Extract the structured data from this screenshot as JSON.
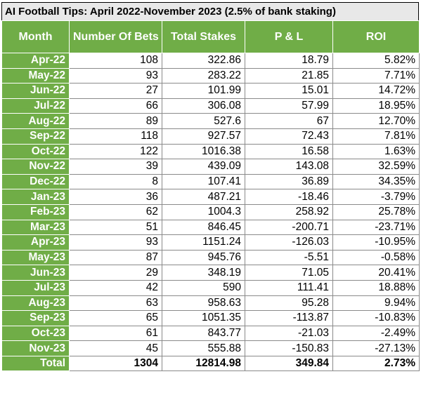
{
  "title": "AI Football Tips: April 2022-November 2023 (2.5% of bank staking)",
  "colors": {
    "header_bg": "#70ad47",
    "header_text": "#ffffff"
  },
  "headers": [
    "Month",
    "Number Of Bets",
    "Total Stakes",
    "P & L",
    "ROI"
  ],
  "rows": [
    [
      "Apr-22",
      "108",
      "322.86",
      "18.79",
      "5.82%"
    ],
    [
      "May-22",
      "93",
      "283.22",
      "21.85",
      "7.71%"
    ],
    [
      "Jun-22",
      "27",
      "101.99",
      "15.01",
      "14.72%"
    ],
    [
      "Jul-22",
      "66",
      "306.08",
      "57.99",
      "18.95%"
    ],
    [
      "Aug-22",
      "89",
      "527.6",
      "67",
      "12.70%"
    ],
    [
      "Sep-22",
      "118",
      "927.57",
      "72.43",
      "7.81%"
    ],
    [
      "Oct-22",
      "122",
      "1016.38",
      "16.58",
      "1.63%"
    ],
    [
      "Nov-22",
      "39",
      "439.09",
      "143.08",
      "32.59%"
    ],
    [
      "Dec-22",
      "8",
      "107.41",
      "36.89",
      "34.35%"
    ],
    [
      "Jan-23",
      "36",
      "487.21",
      "-18.46",
      "-3.79%"
    ],
    [
      "Feb-23",
      "62",
      "1004.3",
      "258.92",
      "25.78%"
    ],
    [
      "Mar-23",
      "51",
      "846.45",
      "-200.71",
      "-23.71%"
    ],
    [
      "Apr-23",
      "93",
      "1151.24",
      "-126.03",
      "-10.95%"
    ],
    [
      "May-23",
      "87",
      "945.76",
      "-5.51",
      "-0.58%"
    ],
    [
      "Jun-23",
      "29",
      "348.19",
      "71.05",
      "20.41%"
    ],
    [
      "Jul-23",
      "42",
      "590",
      "111.41",
      "18.88%"
    ],
    [
      "Aug-23",
      "63",
      "958.63",
      "95.28",
      "9.94%"
    ],
    [
      "Sep-23",
      "65",
      "1051.35",
      "-113.87",
      "-10.83%"
    ],
    [
      "Oct-23",
      "61",
      "843.77",
      "-21.03",
      "-2.49%"
    ],
    [
      "Nov-23",
      "45",
      "555.88",
      "-150.83",
      "-27.13%"
    ]
  ],
  "total": [
    "Total",
    "1304",
    "12814.98",
    "349.84",
    "2.73%"
  ]
}
